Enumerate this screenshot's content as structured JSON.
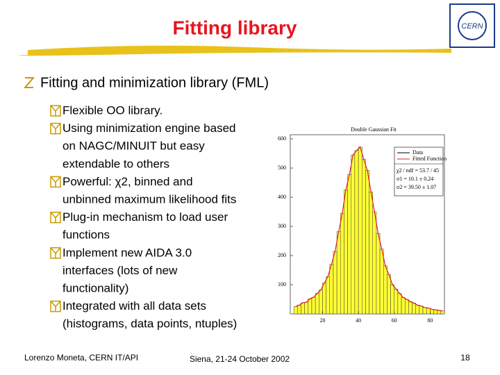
{
  "header": {
    "title": "Fitting library",
    "logo": "CERN"
  },
  "bullet": "Fitting and minimization library (FML)",
  "items": [
    [
      "Flexible OO library."
    ],
    [
      "Using minimization engine based",
      "on NAGC/MINUIT but easy",
      "extendable to others"
    ],
    [
      "Powerful: χ2, binned and",
      "unbinned maximum likelihood fits"
    ],
    [
      "Plug-in mechanism to load user",
      "functions"
    ],
    [
      "Implement new AIDA 3.0",
      "interfaces (lots of new",
      "functionality)"
    ],
    [
      "Integrated with all data sets",
      "(histograms, data points, ntuples)"
    ]
  ],
  "plot": {
    "title": "Double Gaussian Fit",
    "legend": [
      "Data",
      "Fitted Function"
    ],
    "stats": [
      "χ2 / ndf = 53.7 / 45",
      "σ1 = 10.1 ± 0.24",
      "σ2 = 39.50 ± 1.07"
    ],
    "ylim": [
      0,
      600
    ],
    "yticks": [
      100,
      200,
      300,
      400,
      500,
      600
    ],
    "xlim": [
      2,
      88
    ],
    "xticks": [
      20,
      40,
      60,
      80
    ],
    "bins": [
      4,
      6,
      8,
      10,
      12,
      14,
      16,
      18,
      20,
      22,
      24,
      26,
      28,
      30,
      32,
      34,
      36,
      38,
      40,
      42,
      44,
      46,
      48,
      50,
      52,
      54,
      56,
      58,
      60,
      62,
      64,
      66,
      68,
      70,
      72,
      74,
      76,
      78,
      80,
      82,
      84,
      86,
      88
    ],
    "values": [
      25,
      30,
      38,
      40,
      52,
      57,
      70,
      82,
      106,
      128,
      170,
      214,
      282,
      345,
      425,
      478,
      545,
      560,
      572,
      530,
      492,
      418,
      350,
      276,
      222,
      165,
      135,
      100,
      85,
      70,
      56,
      50,
      42,
      37,
      30,
      27,
      22,
      20,
      16,
      14,
      12,
      10
    ],
    "fill": "#ffff33",
    "fit_color": "#e02020"
  },
  "footer": {
    "author": "Lorenzo Moneta, CERN IT/API",
    "event": "Siena, 21-24 October 2002",
    "page": "18"
  }
}
